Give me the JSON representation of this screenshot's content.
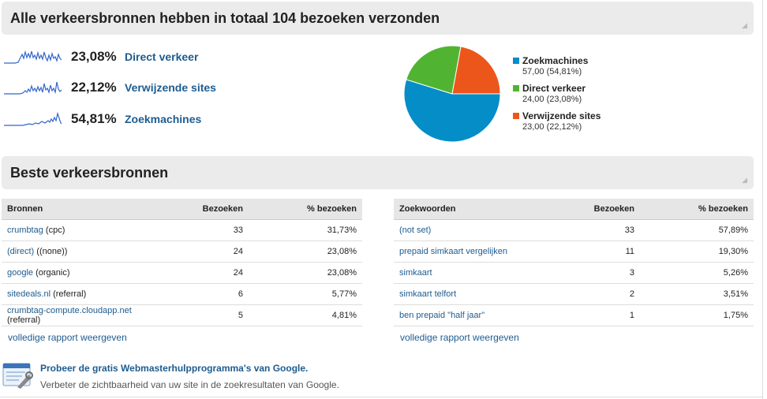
{
  "summary": {
    "title": "Alle verkeersbronnen hebben in totaal 104 bezoeken verzonden",
    "sources": [
      {
        "percent": "23,08%",
        "name": "Direct verkeer"
      },
      {
        "percent": "22,12%",
        "name": "Verwijzende sites"
      },
      {
        "percent": "54,81%",
        "name": "Zoekmachines"
      }
    ]
  },
  "chart_data": {
    "type": "pie",
    "slices": [
      {
        "name": "Zoekmachines",
        "value": 57.0,
        "label": "57,00 (54,81%)",
        "color": "#058dc7"
      },
      {
        "name": "Direct verkeer",
        "value": 24.0,
        "label": "24,00 (23,08%)",
        "color": "#50b432"
      },
      {
        "name": "Verwijzende sites",
        "value": 23.0,
        "label": "23,00 (22,12%)",
        "color": "#ed561b"
      }
    ],
    "legend": "right"
  },
  "top_sources": {
    "title": "Beste verkeersbronnen",
    "sources_table": {
      "headers": [
        "Bronnen",
        "Bezoeken",
        "% bezoeken"
      ],
      "rows": [
        {
          "link": "crumbtag",
          "suffix": "(cpc)",
          "visits": "33",
          "pct": "31,73%"
        },
        {
          "link": "(direct)",
          "suffix": "((none))",
          "visits": "24",
          "pct": "23,08%"
        },
        {
          "link": "google",
          "suffix": "(organic)",
          "visits": "24",
          "pct": "23,08%"
        },
        {
          "link": "sitedeals.nl",
          "suffix": "(referral)",
          "visits": "6",
          "pct": "5,77%"
        },
        {
          "link": "crumbtag-compute.cloudapp.net",
          "suffix": "(referral)",
          "visits": "5",
          "pct": "4,81%"
        }
      ],
      "more_link": "volledige rapport weergeven"
    },
    "keywords_table": {
      "headers": [
        "Zoekwoorden",
        "Bezoeken",
        "% bezoeken"
      ],
      "rows": [
        {
          "link": "(not set)",
          "suffix": "",
          "visits": "33",
          "pct": "57,89%"
        },
        {
          "link": "prepaid simkaart vergelijken",
          "suffix": "",
          "visits": "11",
          "pct": "19,30%"
        },
        {
          "link": "simkaart",
          "suffix": "",
          "visits": "3",
          "pct": "5,26%"
        },
        {
          "link": "simkaart telfort",
          "suffix": "",
          "visits": "2",
          "pct": "3,51%"
        },
        {
          "link": "ben prepaid \"half jaar\"",
          "suffix": "",
          "visits": "1",
          "pct": "1,75%"
        }
      ],
      "more_link": "volledige rapport weergeven"
    }
  },
  "promo": {
    "title": "Probeer de gratis Webmasterhulpprogramma's van Google.",
    "description": "Verbeter de zichtbaarheid van uw site in de zoekresultaten van Google.",
    "icon": "webmaster-tools-icon"
  },
  "colors": {
    "link": "#1e5c8f",
    "header_bg": "#ebebeb",
    "sparkline": "#3366cc"
  }
}
